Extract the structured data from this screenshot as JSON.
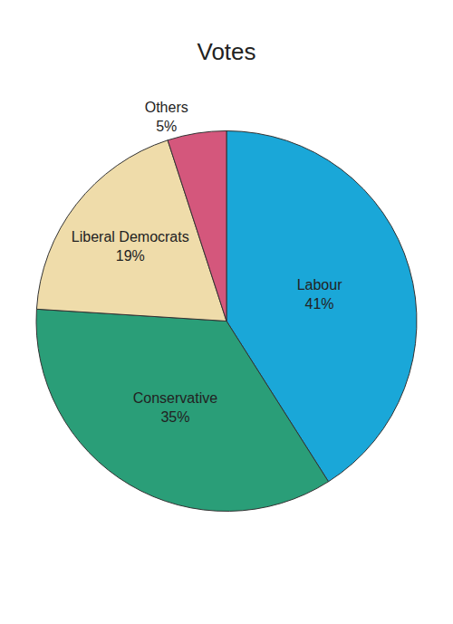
{
  "chart_data": {
    "type": "pie",
    "title": "Votes",
    "categories": [
      "Labour",
      "Conservative",
      "Liberal Democrats",
      "Others"
    ],
    "values": [
      41,
      35,
      19,
      5
    ],
    "value_labels": [
      "41%",
      "35%",
      "19%",
      "5%"
    ],
    "colors": [
      "#1aa7d8",
      "#2a9e78",
      "#efdcaa",
      "#d4577c"
    ],
    "data_labels": true
  }
}
